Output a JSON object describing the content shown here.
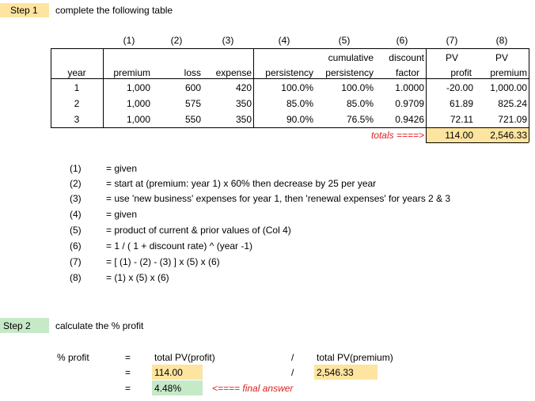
{
  "step1": {
    "badge": "Step 1",
    "instruction": "complete the following table"
  },
  "table": {
    "col_numbers": [
      "(1)",
      "(2)",
      "(3)",
      "(4)",
      "(5)",
      "(6)",
      "(7)",
      "(8)"
    ],
    "header_top": {
      "cumulative": "cumulative",
      "discount": "discount",
      "pv1": "PV",
      "pv2": "PV"
    },
    "header_bottom": [
      "year",
      "premium",
      "loss",
      "expense",
      "persistency",
      "persistency",
      "factor",
      "profit",
      "premium"
    ],
    "rows": [
      [
        "1",
        "1,000",
        "600",
        "420",
        "100.0%",
        "100.0%",
        "1.0000",
        "-20.00",
        "1,000.00"
      ],
      [
        "2",
        "1,000",
        "575",
        "350",
        "85.0%",
        "85.0%",
        "0.9709",
        "61.89",
        "825.24"
      ],
      [
        "3",
        "1,000",
        "550",
        "350",
        "90.0%",
        "76.5%",
        "0.9426",
        "72.11",
        "721.09"
      ]
    ],
    "totals_label": "totals ====>",
    "total_profit": "114.00",
    "total_premium": "2,546.33"
  },
  "notes": [
    {
      "num": "(1)",
      "text": "= given"
    },
    {
      "num": "(2)",
      "text": "= start at  (premium: year 1) x 60%  then decrease by 25 per year"
    },
    {
      "num": "(3)",
      "text": "= use 'new business' expenses for year 1, then 'renewal expenses' for years 2 & 3"
    },
    {
      "num": "(4)",
      "text": "= given"
    },
    {
      "num": "(5)",
      "text": "= product of current & prior values of (Col 4)"
    },
    {
      "num": "(6)",
      "text": "= 1 / ( 1 + discount rate) ^ (year -1)"
    },
    {
      "num": "(7)",
      "text": "= [ (1) - (2) - (3) ] x (5) x (6)"
    },
    {
      "num": "(8)",
      "text": "=  (1) x (5) x (6)"
    }
  ],
  "step2": {
    "badge": "Step 2",
    "instruction": "calculate the % profit",
    "label": "% profit",
    "eq": "=",
    "num_label": "total PV(profit)",
    "slash": "/",
    "den_label": "total PV(premium)",
    "num_value": "114.00",
    "den_value": "2,546.33",
    "result": "4.48%",
    "final_label": "<==== final answer"
  },
  "colors": {
    "yellow": "#fde4a0",
    "green": "#c6e9c8",
    "red": "#e02020"
  }
}
